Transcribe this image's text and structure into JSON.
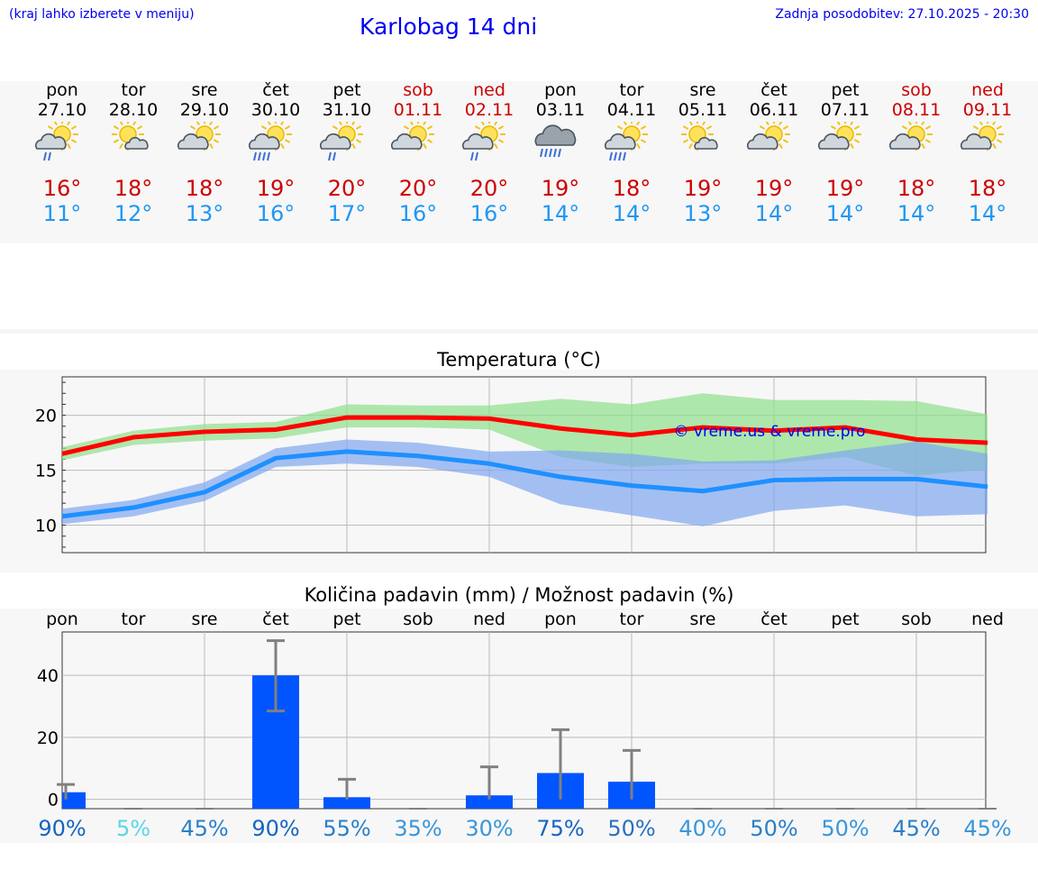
{
  "header": {
    "hint": "(kraj lahko izberete v meniju)",
    "title": "Karlobag 14 dni",
    "updated": "Zadnja posodobitev: 27.10.2025 - 20:30"
  },
  "days": [
    {
      "name": "pon",
      "date": "27.10",
      "weekend": false,
      "icon": "partly-sunny-light-rain-icon",
      "tmax": "16°",
      "tmin": "11°"
    },
    {
      "name": "tor",
      "date": "28.10",
      "weekend": false,
      "icon": "sun-cloud-icon",
      "tmax": "18°",
      "tmin": "12°"
    },
    {
      "name": "sre",
      "date": "29.10",
      "weekend": false,
      "icon": "partly-sunny-icon",
      "tmax": "18°",
      "tmin": "13°"
    },
    {
      "name": "čet",
      "date": "30.10",
      "weekend": false,
      "icon": "partly-sunny-rain-icon",
      "tmax": "19°",
      "tmin": "16°"
    },
    {
      "name": "pet",
      "date": "31.10",
      "weekend": false,
      "icon": "partly-sunny-light-rain-icon",
      "tmax": "20°",
      "tmin": "17°"
    },
    {
      "name": "sob",
      "date": "01.11",
      "weekend": true,
      "icon": "partly-sunny-icon",
      "tmax": "20°",
      "tmin": "16°"
    },
    {
      "name": "ned",
      "date": "02.11",
      "weekend": true,
      "icon": "partly-sunny-light-rain-icon",
      "tmax": "20°",
      "tmin": "16°"
    },
    {
      "name": "pon",
      "date": "03.11",
      "weekend": false,
      "icon": "cloudy-rain-icon",
      "tmax": "19°",
      "tmin": "14°"
    },
    {
      "name": "tor",
      "date": "04.11",
      "weekend": false,
      "icon": "partly-sunny-rain-icon",
      "tmax": "18°",
      "tmin": "14°"
    },
    {
      "name": "sre",
      "date": "05.11",
      "weekend": false,
      "icon": "sun-cloud-icon",
      "tmax": "19°",
      "tmin": "13°"
    },
    {
      "name": "čet",
      "date": "06.11",
      "weekend": false,
      "icon": "partly-sunny-icon",
      "tmax": "19°",
      "tmin": "14°"
    },
    {
      "name": "pet",
      "date": "07.11",
      "weekend": false,
      "icon": "partly-sunny-icon",
      "tmax": "19°",
      "tmin": "14°"
    },
    {
      "name": "sob",
      "date": "08.11",
      "weekend": true,
      "icon": "partly-sunny-icon",
      "tmax": "18°",
      "tmin": "14°"
    },
    {
      "name": "ned",
      "date": "09.11",
      "weekend": true,
      "icon": "partly-sunny-icon",
      "tmax": "18°",
      "tmin": "14°"
    }
  ],
  "colors": {
    "tmax_line": "#ff0000",
    "tmax_band": "#8ee08a",
    "tmin_line": "#1e90ff",
    "tmin_band": "#7fa6f0",
    "bar": "#0055ff",
    "error": "#808080",
    "watermark": "#0000ee"
  },
  "chart_data": [
    {
      "type": "line",
      "title": "Temperatura (°C)",
      "watermark": "© vreme.us & vreme.pro",
      "categories": [
        "27.10",
        "28.10",
        "29.10",
        "30.10",
        "31.10",
        "01.11",
        "02.11",
        "03.11",
        "04.11",
        "05.11",
        "06.11",
        "07.11",
        "08.11",
        "09.11"
      ],
      "ylim": [
        7.5,
        23.5
      ],
      "yticks": [
        10,
        15,
        20
      ],
      "series": [
        {
          "name": "max",
          "values": [
            16.5,
            18,
            18.5,
            18.7,
            19.8,
            19.8,
            19.7,
            18.8,
            18.2,
            18.9,
            18.6,
            18.9,
            17.8,
            17.5
          ],
          "band_low": [
            15.9,
            17.3,
            17.7,
            17.9,
            18.9,
            18.9,
            18.7,
            16.2,
            15.3,
            15.6,
            15.6,
            16.2,
            14.5,
            15.1
          ],
          "band_high": [
            17.1,
            18.6,
            19.2,
            19.4,
            21.0,
            20.9,
            20.9,
            21.5,
            21.0,
            22.0,
            21.4,
            21.4,
            21.3,
            20.1
          ]
        },
        {
          "name": "min",
          "values": [
            10.8,
            11.6,
            13,
            16.1,
            16.7,
            16.3,
            15.6,
            14.4,
            13.6,
            13.1,
            14.1,
            14.2,
            14.2,
            13.5
          ],
          "band_low": [
            10.1,
            10.8,
            12.2,
            15.3,
            15.6,
            15.3,
            14.4,
            11.9,
            10.9,
            9.9,
            11.3,
            11.8,
            10.8,
            11.0
          ],
          "band_high": [
            11.5,
            12.3,
            13.9,
            17.0,
            17.8,
            17.5,
            16.7,
            16.8,
            16.5,
            15.8,
            15.9,
            16.8,
            17.6,
            16.5
          ]
        }
      ]
    },
    {
      "type": "bar",
      "title": "Količina padavin (mm) / Možnost padavin (%)",
      "categories": [
        "pon",
        "tor",
        "sre",
        "čet",
        "pet",
        "sob",
        "ned",
        "pon",
        "tor",
        "sre",
        "čet",
        "pet",
        "sob",
        "ned"
      ],
      "values": [
        2.3,
        0,
        0,
        40,
        0.7,
        0,
        1.3,
        8.5,
        5.7,
        0,
        0,
        0,
        0,
        0
      ],
      "error_low": [
        0,
        0,
        0,
        28.5,
        0,
        0,
        0,
        0,
        0,
        0,
        0,
        0,
        0,
        0
      ],
      "error_high": [
        4.8,
        0,
        0,
        51.2,
        6.5,
        0,
        10.5,
        22.5,
        15.8,
        0,
        0,
        0,
        0,
        0
      ],
      "probability": [
        "90%",
        "5%",
        "45%",
        "90%",
        "55%",
        "35%",
        "30%",
        "75%",
        "50%",
        "40%",
        "50%",
        "50%",
        "45%",
        "45%"
      ],
      "probability_colors": [
        "#1565c0",
        "#5bd5e8",
        "#2a7fc7",
        "#1565c0",
        "#2a7fc7",
        "#3a96d9",
        "#3a96d9",
        "#1565c0",
        "#2a6fc0",
        "#3a96d9",
        "#2a7fc7",
        "#3a96d9",
        "#2a7fc7",
        "#3a96d9"
      ],
      "ylim": [
        -3,
        54
      ],
      "yticks": [
        0,
        20,
        40
      ]
    }
  ]
}
